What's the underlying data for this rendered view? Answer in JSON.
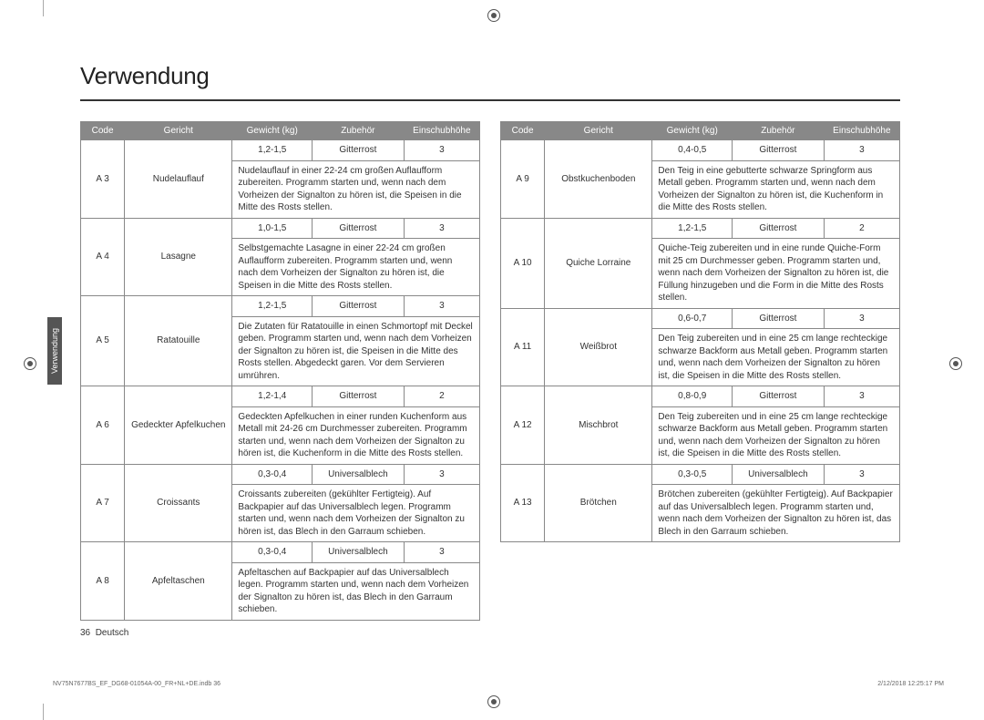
{
  "title": "Verwendung",
  "sideTab": "Verwendung",
  "headers": {
    "code": "Code",
    "dish": "Gericht",
    "weight": "Gewicht (kg)",
    "accessory": "Zubehör",
    "level": "Einschubhöhe"
  },
  "colWidths": {
    "code": "11%",
    "dish": "27%",
    "weight": "20%",
    "accessory": "23%",
    "level": "19%"
  },
  "colors": {
    "headerBg": "#888888",
    "headerText": "#ffffff",
    "border": "#888888",
    "text": "#333333"
  },
  "left": [
    {
      "code": "A 3",
      "dish": "Nudelauﬂauf",
      "weight": "1,2-1,5",
      "accessory": "Gitterrost",
      "level": "3",
      "desc": "Nudelauﬂauf in einer 22-24 cm großen Auﬂaufform zubereiten. Programm starten und, wenn nach dem Vorheizen der Signalton zu hören ist, die Speisen in die Mitte des Rosts stellen."
    },
    {
      "code": "A 4",
      "dish": "Lasagne",
      "weight": "1,0-1,5",
      "accessory": "Gitterrost",
      "level": "3",
      "desc": "Selbstgemachte Lasagne in einer 22-24 cm großen Auﬂaufform zubereiten. Programm starten und, wenn nach dem Vorheizen der Signalton zu hören ist, die Speisen in die Mitte des Rosts stellen."
    },
    {
      "code": "A 5",
      "dish": "Ratatouille",
      "weight": "1,2-1,5",
      "accessory": "Gitterrost",
      "level": "3",
      "desc": "Die Zutaten für Ratatouille in einen Schmortopf mit Deckel geben. Programm starten und, wenn nach dem Vorheizen der Signalton zu hören ist, die Speisen in die Mitte des Rosts stellen. Abgedeckt garen. Vor dem Servieren umrühren."
    },
    {
      "code": "A 6",
      "dish": "Gedeckter Apfelkuchen",
      "weight": "1,2-1,4",
      "accessory": "Gitterrost",
      "level": "2",
      "desc": "Gedeckten Apfelkuchen in einer runden Kuchenform aus Metall mit 24-26 cm Durchmesser zubereiten. Programm starten und, wenn nach dem Vorheizen der Signalton zu hören ist, die Kuchenform in die Mitte des Rosts stellen."
    },
    {
      "code": "A 7",
      "dish": "Croissants",
      "weight": "0,3-0,4",
      "accessory": "Universalblech",
      "level": "3",
      "desc": "Croissants zubereiten (gekühlter Fertigteig). Auf Backpapier auf das Universalblech legen. Programm starten und, wenn nach dem Vorheizen der Signalton zu hören ist, das Blech in den Garraum schieben."
    },
    {
      "code": "A 8",
      "dish": "Apfeltaschen",
      "weight": "0,3-0,4",
      "accessory": "Universalblech",
      "level": "3",
      "desc": "Apfeltaschen auf Backpapier auf das Universalblech legen. Programm starten und, wenn nach dem Vorheizen der Signalton zu hören ist, das Blech in den Garraum schieben."
    }
  ],
  "right": [
    {
      "code": "A 9",
      "dish": "Obstkuchenboden",
      "weight": "0,4-0,5",
      "accessory": "Gitterrost",
      "level": "3",
      "desc": "Den Teig in eine gebutterte schwarze Springform aus Metall geben. Programm starten und, wenn nach dem Vorheizen der Signalton zu hören ist, die Kuchenform in die Mitte des Rosts stellen."
    },
    {
      "code": "A 10",
      "dish": "Quiche Lorraine",
      "weight": "1,2-1,5",
      "accessory": "Gitterrost",
      "level": "2",
      "desc": "Quiche-Teig zubereiten und in eine runde Quiche-Form mit 25 cm Durchmesser geben. Programm starten und, wenn nach dem Vorheizen der Signalton zu hören ist, die Füllung hinzugeben und die Form in die Mitte des Rosts stellen."
    },
    {
      "code": "A 11",
      "dish": "Weißbrot",
      "weight": "0,6-0,7",
      "accessory": "Gitterrost",
      "level": "3",
      "desc": "Den Teig zubereiten und in eine 25 cm lange rechteckige schwarze Backform aus Metall geben. Programm starten und, wenn nach dem Vorheizen der Signalton zu hören ist, die Speisen in die Mitte des Rosts stellen."
    },
    {
      "code": "A 12",
      "dish": "Mischbrot",
      "weight": "0,8-0,9",
      "accessory": "Gitterrost",
      "level": "3",
      "desc": "Den Teig zubereiten und in eine 25 cm lange rechteckige schwarze Backform aus Metall geben. Programm starten und, wenn nach dem Vorheizen der Signalton zu hören ist, die Speisen in die Mitte des Rosts stellen."
    },
    {
      "code": "A 13",
      "dish": "Brötchen",
      "weight": "0,3-0,5",
      "accessory": "Universalblech",
      "level": "3",
      "desc": "Brötchen zubereiten (gekühlter Fertigteig). Auf Backpapier auf das Universalblech legen. Programm starten und, wenn nach dem Vorheizen der Signalton zu hören ist, das Blech in den Garraum schieben."
    }
  ],
  "footer": {
    "page": "36",
    "lang": "Deutsch"
  },
  "print": {
    "file": "NV75N7677BS_EF_DG68-01054A-00_FR+NL+DE.indb   36",
    "date": "2/12/2018   12:25:17 PM"
  }
}
